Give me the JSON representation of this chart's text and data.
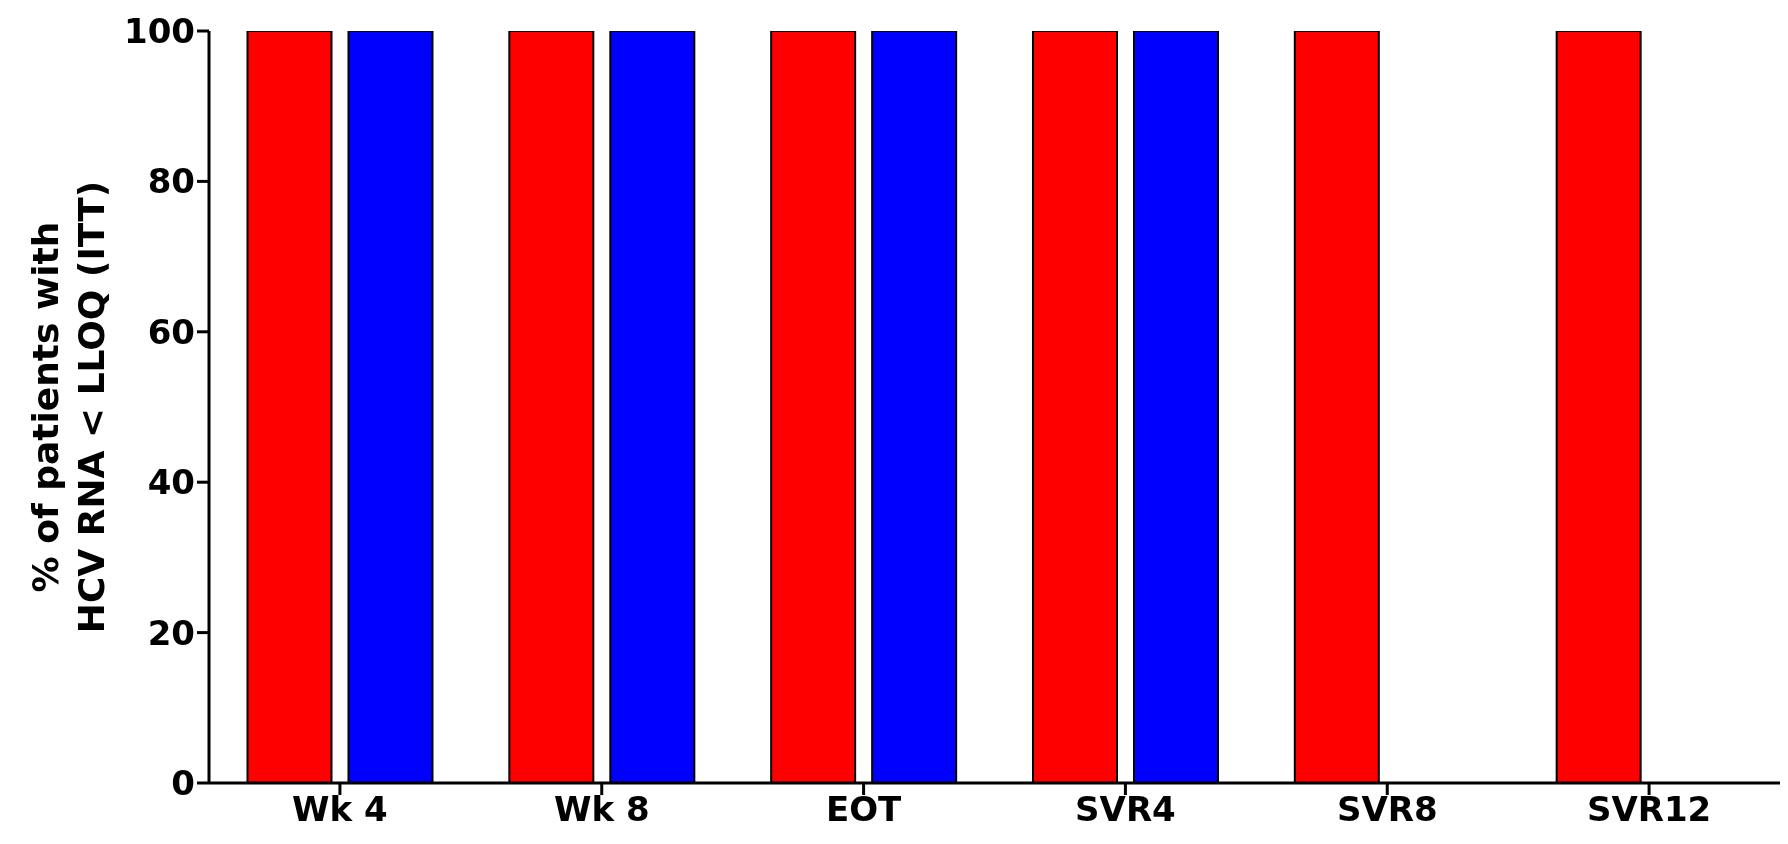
{
  "chart_data": {
    "type": "bar",
    "ylabel": "% of patients with\nHCV RNA < LLOQ (ITT)",
    "categories": [
      "Wk 4",
      "Wk 8",
      "EOT",
      "SVR4",
      "SVR8",
      "SVR12"
    ],
    "series": [
      {
        "color": "#ff0000",
        "values": [
          100,
          100,
          100,
          100,
          100,
          100
        ]
      },
      {
        "color": "#0000ff",
        "values": [
          100,
          100,
          100,
          100,
          null,
          null
        ]
      }
    ],
    "ylim": [
      0,
      100
    ],
    "yticks": [
      0,
      20,
      40,
      60,
      80,
      100
    ],
    "grid": false,
    "legend": false
  }
}
